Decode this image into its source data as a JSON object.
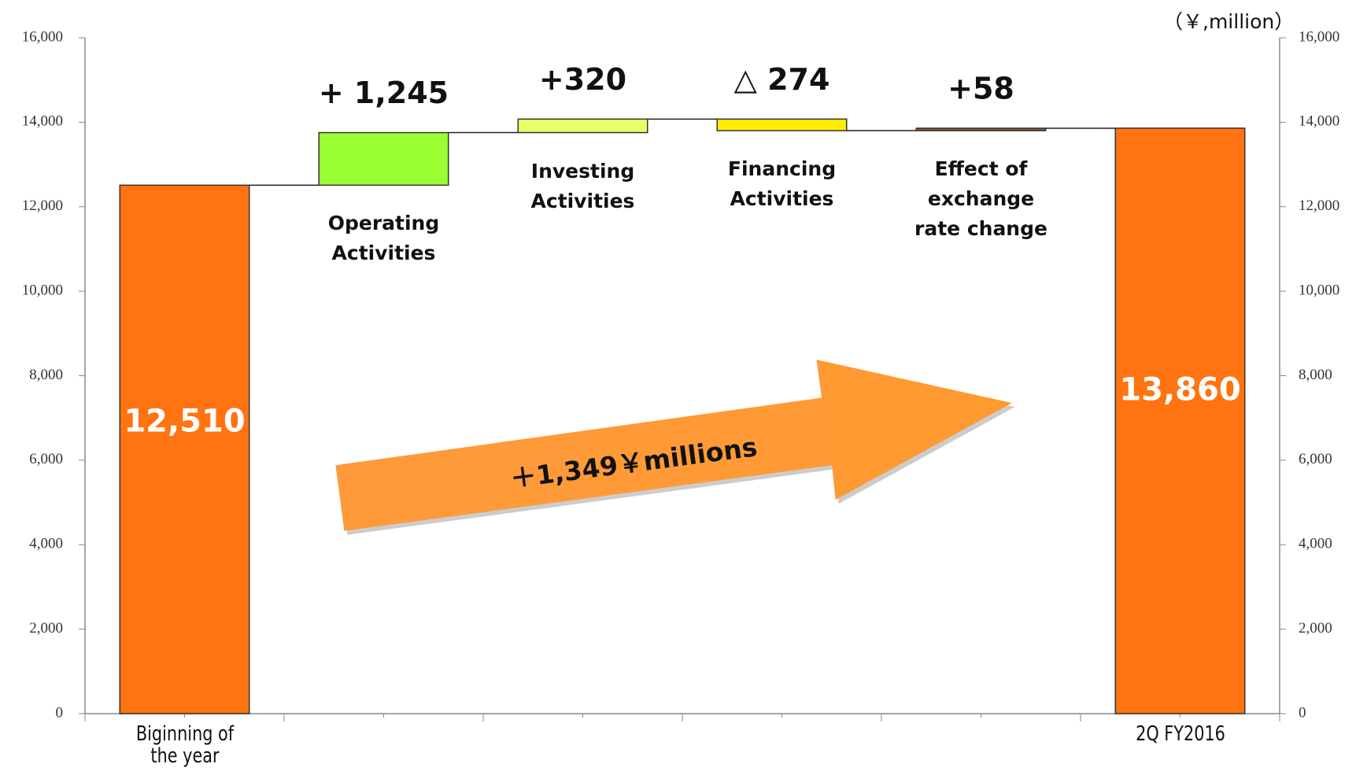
{
  "chart_data": {
    "type": "waterfall",
    "unit_label": "（￥,million）",
    "annotation": "＋1,349￥millions",
    "categories": [
      "Biginning of the year",
      "Operating Activities",
      "Investing Activities",
      "Financing Activities",
      "Effect of exchange rate change",
      "2Q FY2016"
    ],
    "values": [
      12510,
      1245,
      320,
      -274,
      58,
      13860
    ],
    "value_labels": [
      "12,510",
      "+ 1,245",
      "+320",
      "△ 274",
      "+58",
      "13,860"
    ],
    "measure": [
      "absolute",
      "relative",
      "relative",
      "relative",
      "relative",
      "absolute"
    ],
    "colors": [
      "#ff7410",
      "#99ff33",
      "#e8ff66",
      "#ffee00",
      "#8b5a2b",
      "#ff7410"
    ],
    "ylim": [
      0,
      16000
    ],
    "yticks": [
      0,
      {
        "value": 2000,
        "label": "2,000"
      },
      {
        "value": 4000,
        "label": "4,000"
      },
      {
        "value": 6000,
        "label": "6,000"
      },
      {
        "value": 8000,
        "label": "8,000"
      },
      {
        "value": 10000,
        "label": "10,000"
      },
      {
        "value": 12000,
        "label": "12,000"
      },
      {
        "value": 14000,
        "label": "14,000"
      },
      {
        "value": 16000,
        "label": "16,000"
      }
    ],
    "y2lim": [
      0,
      16000
    ],
    "y2ticks": [
      0,
      {
        "value": 2000,
        "label": "2,000"
      },
      {
        "value": 4000,
        "label": "4,000"
      },
      {
        "value": 6000,
        "label": "6,000"
      },
      {
        "value": 8000,
        "label": "8,000"
      },
      {
        "value": 10000,
        "label": "10,000"
      },
      {
        "value": 12000,
        "label": "12,000"
      },
      {
        "value": 14000,
        "label": "14,000"
      },
      {
        "value": 16000,
        "label": "16,000"
      }
    ]
  }
}
